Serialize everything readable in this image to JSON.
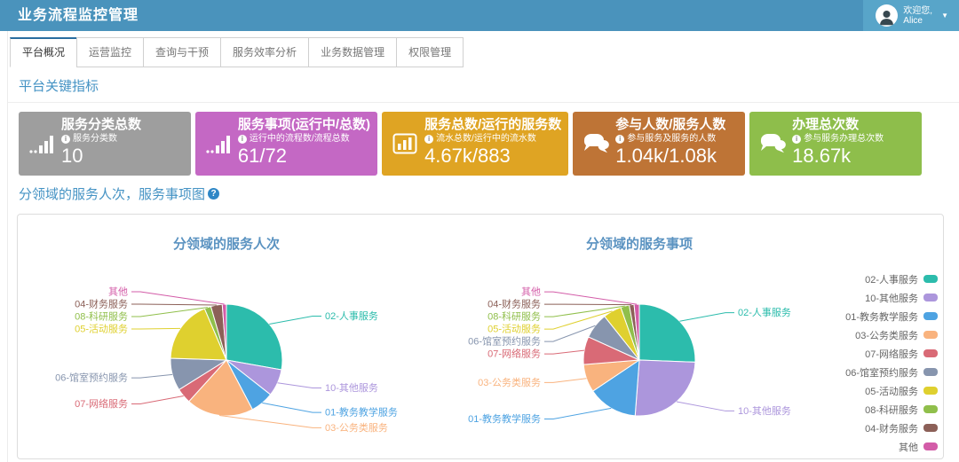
{
  "header": {
    "title": "业务流程监控管理",
    "welcome": "欢迎您,",
    "username": "Alice"
  },
  "tabs": {
    "active": "平台概况",
    "items": [
      {
        "label": "平台概况"
      },
      {
        "label": "运营监控"
      },
      {
        "label": "查询与干预"
      },
      {
        "label": "服务效率分析"
      },
      {
        "label": "业务数据管理"
      },
      {
        "label": "权限管理"
      }
    ]
  },
  "sections": {
    "kpi_title": "平台关键指标",
    "charts_title": "分领域的服务人次，服务事项图"
  },
  "cards": [
    {
      "title": "服务分类总数",
      "subtitle": "服务分类数",
      "value": "10",
      "color": "#9E9E9E",
      "icon": "signal-bars-icon"
    },
    {
      "title": "服务事项(运行中/总数)",
      "subtitle": "运行中的流程数/流程总数",
      "value": "61/72",
      "color": "#C468C4",
      "icon": "signal-bars-icon"
    },
    {
      "title": "服务总数/运行的服务数",
      "subtitle": "流水总数/运行中的流水数",
      "value": "4.67k/883",
      "color": "#DFA423",
      "icon": "bar-chart-icon"
    },
    {
      "title": "参与人数/服务人数",
      "subtitle": "参与服务及服务的人数",
      "value": "1.04k/1.08k",
      "color": "#BE7436",
      "icon": "chat-bubbles-icon"
    },
    {
      "title": "办理总次数",
      "subtitle": "参与服务办理总次数",
      "value": "18.67k",
      "color": "#8EBE4B",
      "icon": "chat-bubbles-icon"
    }
  ],
  "chart_data": [
    {
      "type": "pie",
      "title": "分领域的服务人次",
      "legend_position": "right",
      "unit": "percent",
      "slices": [
        {
          "name": "02-人事服务",
          "percent": 27.8,
          "color": "#2CBCAC"
        },
        {
          "name": "10-其他服务",
          "percent": 7.8,
          "color": "#AC96DC"
        },
        {
          "name": "01-教务教学服务",
          "percent": 6.7,
          "color": "#4EA3E2"
        },
        {
          "name": "03-公务类服务",
          "percent": 19.4,
          "color": "#F9B37E",
          "label_side": "right"
        },
        {
          "name": "07-网络服务",
          "percent": 4.4,
          "color": "#D96A76"
        },
        {
          "name": "06-馆室预约服务",
          "percent": 9.4,
          "color": "#8795AE"
        },
        {
          "name": "05-活动服务",
          "percent": 18.1,
          "color": "#DFD02F"
        },
        {
          "name": "08-科研服务",
          "percent": 1.9,
          "color": "#90BF4B"
        },
        {
          "name": "04-财务服务",
          "percent": 3.3,
          "color": "#8C6058"
        },
        {
          "name": "其他",
          "percent": 1.2,
          "color": "#D35CA8"
        }
      ]
    },
    {
      "type": "pie",
      "title": "分领域的服务事项",
      "legend_position": "right",
      "unit": "percent",
      "slices": [
        {
          "name": "02-人事服务",
          "percent": 25.6,
          "color": "#2CBCAC"
        },
        {
          "name": "10-其他服务",
          "percent": 25.6,
          "color": "#AC96DC"
        },
        {
          "name": "01-教务教学服务",
          "percent": 14.4,
          "color": "#4EA3E2"
        },
        {
          "name": "03-公务类服务",
          "percent": 8.1,
          "color": "#F9B37E"
        },
        {
          "name": "07-网络服务",
          "percent": 8.1,
          "color": "#D96A76"
        },
        {
          "name": "06-馆室预约服务",
          "percent": 7.5,
          "color": "#8795AE"
        },
        {
          "name": "05-活动服务",
          "percent": 5.3,
          "color": "#DFD02F"
        },
        {
          "name": "08-科研服务",
          "percent": 2.5,
          "color": "#90BF4B"
        },
        {
          "name": "04-财务服务",
          "percent": 1.4,
          "color": "#8C6058"
        },
        {
          "name": "其他",
          "percent": 1.5,
          "color": "#D35CA8"
        }
      ]
    }
  ],
  "colors": {
    "header_bg": "#4A93BC",
    "header_user_bg": "#58A5C9",
    "tab_active_accent": "#2A6DA0",
    "section_title": "#4593C4",
    "chart_title": "#5B93C1",
    "dashed_divider": "#4A80C8",
    "help_icon_bg": "#2F87C6"
  }
}
